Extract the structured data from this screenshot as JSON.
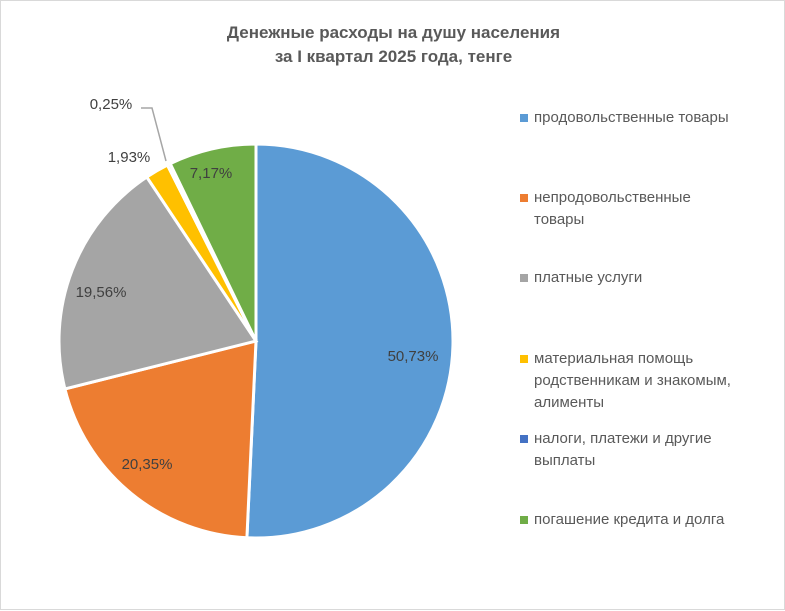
{
  "chart_data": {
    "type": "pie",
    "title": [
      "Денежные расходы на душу населения",
      "за I квартал 2025 года, тенге"
    ],
    "slices": [
      {
        "name": "продовольственные товары",
        "value": 50.73,
        "label": "50,73%",
        "color": "#5B9BD5"
      },
      {
        "name": "непродовольственные товары",
        "value": 20.35,
        "label": "20,35%",
        "color": "#ED7D31"
      },
      {
        "name": "платные услуги",
        "value": 19.56,
        "label": "19,56%",
        "color": "#A5A5A5"
      },
      {
        "name": "материальная помощь родственникам и знакомым, алименты",
        "value": 1.93,
        "label": "1,93%",
        "color": "#FFC000"
      },
      {
        "name": "налоги, платежи и другие выплаты",
        "value": 0.25,
        "label": "0,25%",
        "color": "#4472C4"
      },
      {
        "name": "погашение кредита и долга",
        "value": 7.17,
        "label": "7,17%",
        "color": "#70AD47"
      }
    ],
    "legend_position": "right"
  }
}
